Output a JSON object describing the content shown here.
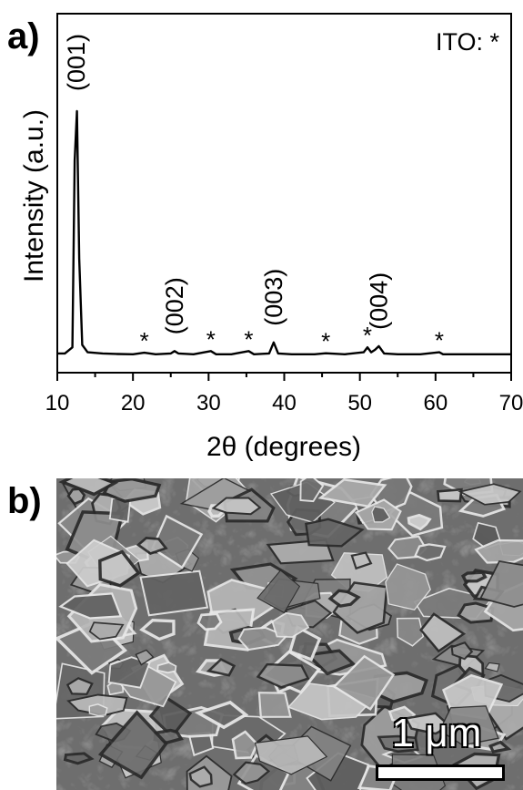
{
  "panel_a_label": "a)",
  "panel_b_label": "b)",
  "chart_data": {
    "type": "line",
    "xlabel": "2θ (degrees)",
    "ylabel": "Intensity (a.u.)",
    "xlim": [
      10,
      70
    ],
    "xticks": [
      10,
      20,
      30,
      40,
      50,
      60,
      70
    ],
    "y_unit": "arbitrary",
    "legend_note": "ITO: *",
    "series": [
      {
        "x": [
          10,
          11,
          12,
          12.3,
          12.6,
          12.9,
          13.3,
          14,
          16,
          18,
          20,
          21.5,
          23,
          25,
          25.5,
          26,
          28,
          30.3,
          31,
          33,
          35.3,
          36,
          38,
          38.6,
          39.2,
          41,
          44,
          45.5,
          48,
          50.5,
          51,
          51.5,
          52,
          52.5,
          53.2,
          55,
          58,
          60.5,
          61,
          65,
          70
        ],
        "y": [
          1.5,
          1.5,
          4,
          80,
          100,
          40,
          5,
          2,
          1.5,
          1.3,
          1.2,
          1.8,
          1.2,
          1.5,
          2.5,
          1.5,
          1.2,
          2.5,
          1.2,
          1.2,
          2.5,
          1.2,
          1.5,
          6,
          1.5,
          1.2,
          1.2,
          1.6,
          1.2,
          2,
          4,
          2,
          3,
          4.5,
          1.5,
          1.2,
          1.2,
          2,
          1.2,
          1.2,
          1.2
        ]
      }
    ],
    "peak_labels": [
      {
        "text": "(001)",
        "x": 12.5,
        "y": 100
      },
      {
        "text": "(002)",
        "x": 25.5,
        "y": 2.5
      },
      {
        "text": "(003)",
        "x": 38.6,
        "y": 6
      },
      {
        "text": "(004)",
        "x": 52.5,
        "y": 4.5
      }
    ],
    "ito_markers": [
      {
        "text": "*",
        "x": 21.5,
        "y": 1.8
      },
      {
        "text": "*",
        "x": 30.3,
        "y": 2.5
      },
      {
        "text": "*",
        "x": 35.3,
        "y": 2.5
      },
      {
        "text": "*",
        "x": 45.5,
        "y": 1.6
      },
      {
        "text": "*",
        "x": 51.0,
        "y": 4
      },
      {
        "text": "*",
        "x": 60.5,
        "y": 2
      }
    ]
  },
  "sem_image": {
    "scale_bar_label": "1 μm"
  }
}
